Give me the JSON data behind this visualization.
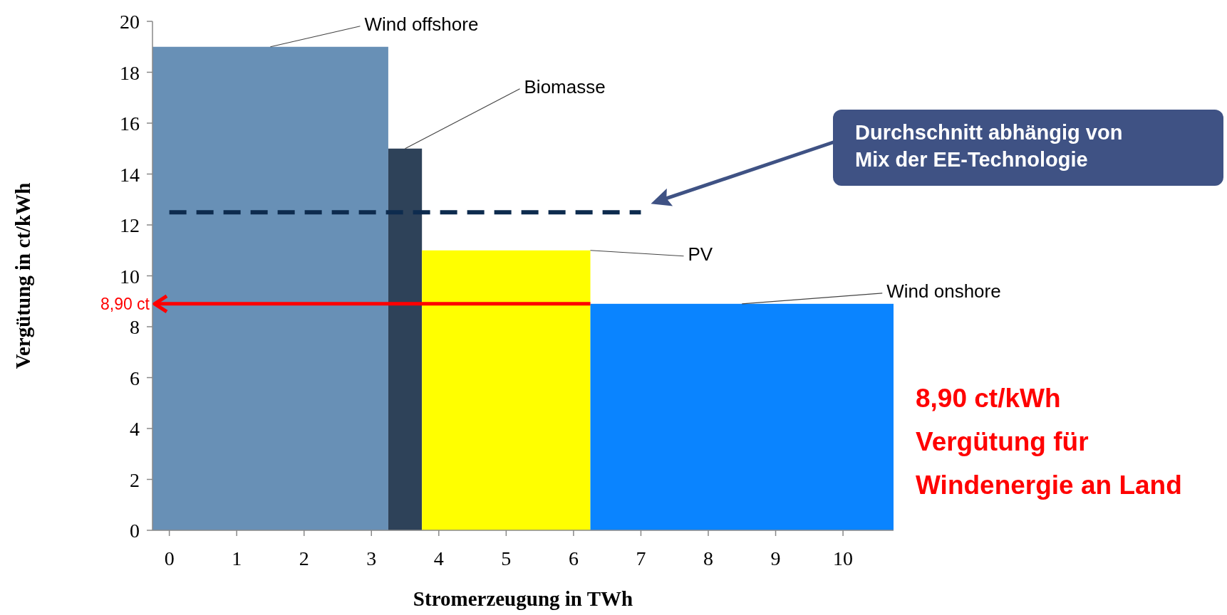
{
  "chart_data": {
    "type": "histogram",
    "xlabel": "Stromerzeugung in TWh",
    "ylabel": "Vergütung in ct/kWh",
    "bins": [
      -0.25,
      3.25,
      3.75,
      6.25,
      10.75
    ],
    "values": [
      19,
      15,
      11,
      8.9
    ],
    "colors": [
      "#6890b6",
      "#2e4259",
      "#ffff00",
      "#0a84ff"
    ],
    "xlim": [
      -0.25,
      10.75
    ],
    "xticks": [
      0,
      1,
      2,
      3,
      4,
      5,
      6,
      7,
      8,
      9,
      10
    ],
    "ylim": [
      0,
      20
    ],
    "yticks": [
      0,
      2,
      4,
      6,
      8,
      10,
      12,
      14,
      16,
      18,
      20
    ],
    "series": [
      {
        "type": "line",
        "color": "#0d2b4e",
        "line_style": "dashed",
        "x": [
          0,
          7
        ],
        "values": [
          12.5,
          12.5
        ]
      }
    ],
    "annotations": [
      {
        "text": "Wind offshore",
        "x": 1.5,
        "y": 19
      },
      {
        "text": "Biomasse",
        "x": 3.5,
        "y": 15
      },
      {
        "text": "PV",
        "x": 6.25,
        "y": 11
      },
      {
        "text": "Wind onshore",
        "x": 8.5,
        "y": 8.9
      },
      "8,90 ct",
      "Durchschnitt abhängig von\nMix der EE-Technologie",
      "8,90 ct/kWh\nVergütung für\nWindenergie an Land"
    ]
  }
}
